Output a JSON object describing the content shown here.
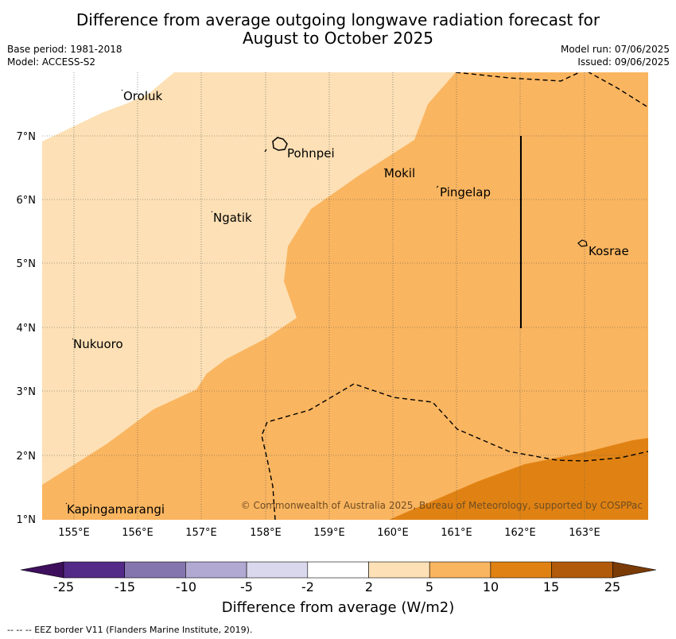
{
  "title_line1": "Difference from average outgoing longwave radiation forecast for",
  "title_line2": "August to October 2025",
  "base_period": "Base period: 1981-2018",
  "model": "Model: ACCESS-S2",
  "model_run": "Model run: 07/06/2025",
  "issued": "Issued: 09/06/2025",
  "copyright": "© Commonwealth of Australia 2025, Bureau of Meteorology, supported by COSPPac",
  "places": {
    "oroluk": "Oroluk",
    "pohnpei": "Pohnpei",
    "mokil": "Mokil",
    "pingelap": "Pingelap",
    "ngatik": "Ngatik",
    "kosrae": "Kosrae",
    "nukuoro": "Nukuoro",
    "kapingamarangi": "Kapingamarangi"
  },
  "lat_labels": [
    "7°N",
    "6°N",
    "5°N",
    "4°N",
    "3°N",
    "2°N",
    "1°N"
  ],
  "lon_labels": [
    "155°E",
    "156°E",
    "157°E",
    "158°E",
    "159°E",
    "160°E",
    "161°E",
    "162°E",
    "163°E"
  ],
  "colorbar": {
    "ticks": [
      "-25",
      "-15",
      "-10",
      "-5",
      "-2",
      "2",
      "5",
      "10",
      "15",
      "25"
    ],
    "colors": [
      "#3d0f5c",
      "#532a87",
      "#8575ae",
      "#b2a9d3",
      "#dad8ec",
      "#ffffff",
      "#fde0b5",
      "#fab560",
      "#e08213",
      "#b15a0c",
      "#7a3b07"
    ],
    "label": "Difference from average (W/m2)"
  },
  "footnote": "--  --  -- EEZ border V11 (Flanders Marine Institute, 2019)."
}
